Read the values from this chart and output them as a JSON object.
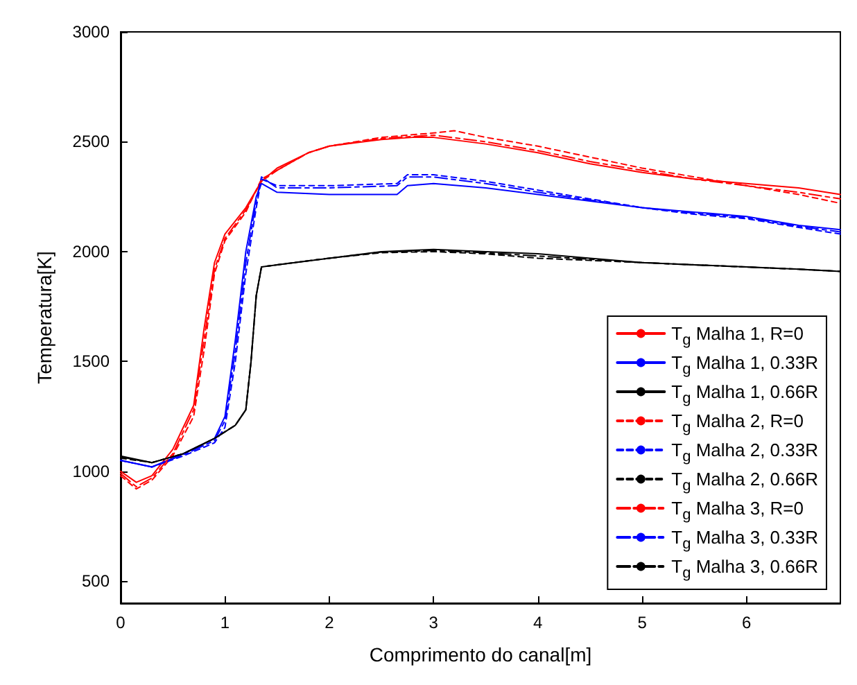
{
  "chart_data": {
    "type": "line",
    "xlabel": "Comprimento do canal[m]",
    "ylabel": "Temperatura[K]",
    "xlim": [
      0,
      6.9
    ],
    "xticks": [
      0,
      1,
      2,
      3,
      4,
      5,
      6
    ],
    "ylim": [
      400,
      3000
    ],
    "yticks": [
      500,
      1000,
      1500,
      2000,
      2500,
      3000
    ],
    "grid": false,
    "legend": "right",
    "marker": "none",
    "series": [
      {
        "name": "T$_{g}$ Malha 1, R=0",
        "color": "#ff0000",
        "line_style": "solid",
        "x": [
          0,
          0.15,
          0.3,
          0.5,
          0.7,
          0.8,
          0.9,
          1.0,
          1.2,
          1.35,
          1.5,
          1.8,
          2.0,
          2.5,
          2.8,
          3.0,
          3.5,
          4.0,
          4.5,
          5.0,
          5.5,
          6.0,
          6.5,
          6.9
        ],
        "values": [
          1000,
          950,
          980,
          1100,
          1300,
          1650,
          1950,
          2080,
          2200,
          2320,
          2380,
          2450,
          2480,
          2510,
          2520,
          2520,
          2490,
          2450,
          2400,
          2360,
          2330,
          2310,
          2290,
          2260
        ]
      },
      {
        "name": "T$_{g}$ Malha 1, 0.33R",
        "color": "#0000ff",
        "line_style": "solid",
        "x": [
          0,
          0.3,
          0.6,
          0.9,
          1.0,
          1.1,
          1.2,
          1.3,
          1.35,
          1.5,
          2.0,
          2.65,
          2.75,
          3.0,
          3.5,
          4.0,
          4.5,
          5.0,
          5.5,
          6.0,
          6.5,
          6.9
        ],
        "values": [
          1050,
          1020,
          1080,
          1150,
          1250,
          1600,
          2000,
          2250,
          2310,
          2270,
          2260,
          2260,
          2300,
          2310,
          2290,
          2260,
          2230,
          2200,
          2180,
          2160,
          2120,
          2100
        ]
      },
      {
        "name": "T$_{g}$ Malha 1, 0.66R",
        "color": "#000000",
        "line_style": "solid",
        "x": [
          0,
          0.3,
          0.6,
          0.9,
          1.1,
          1.2,
          1.25,
          1.3,
          1.35,
          1.5,
          2.0,
          2.5,
          3.0,
          3.5,
          4.0,
          4.5,
          5.0,
          5.5,
          6.0,
          6.5,
          6.9
        ],
        "values": [
          1070,
          1040,
          1080,
          1150,
          1210,
          1280,
          1500,
          1800,
          1930,
          1940,
          1970,
          2000,
          2010,
          2000,
          1990,
          1970,
          1950,
          1940,
          1930,
          1920,
          1910
        ]
      },
      {
        "name": "T$_{g}$ Malha 2, R=0",
        "color": "#ff0000",
        "line_style": "dashed",
        "x": [
          0,
          0.15,
          0.3,
          0.5,
          0.7,
          0.8,
          0.9,
          1.0,
          1.2,
          1.35,
          1.5,
          1.8,
          2.0,
          2.5,
          3.0,
          3.2,
          3.5,
          4.0,
          4.5,
          5.0,
          5.5,
          6.0,
          6.5,
          6.9
        ],
        "values": [
          980,
          920,
          960,
          1070,
          1250,
          1550,
          1900,
          2050,
          2180,
          2330,
          2370,
          2450,
          2480,
          2520,
          2540,
          2550,
          2520,
          2480,
          2430,
          2380,
          2340,
          2300,
          2260,
          2220
        ]
      },
      {
        "name": "T$_{g}$ Malha 2, 0.33R",
        "color": "#0000ff",
        "line_style": "dashed",
        "x": [
          0,
          0.3,
          0.6,
          0.9,
          1.0,
          1.1,
          1.2,
          1.3,
          1.35,
          1.5,
          2.0,
          2.65,
          2.75,
          3.0,
          3.5,
          4.0,
          4.5,
          5.0,
          5.5,
          6.0,
          6.5,
          6.9
        ],
        "values": [
          1050,
          1020,
          1070,
          1130,
          1200,
          1500,
          1900,
          2200,
          2330,
          2300,
          2300,
          2310,
          2350,
          2350,
          2320,
          2280,
          2240,
          2200,
          2170,
          2150,
          2110,
          2080
        ]
      },
      {
        "name": "T$_{g}$ Malha 2, 0.66R",
        "color": "#000000",
        "line_style": "dashed",
        "x": [
          0,
          0.3,
          0.6,
          0.9,
          1.1,
          1.2,
          1.25,
          1.3,
          1.35,
          1.5,
          2.0,
          2.5,
          3.0,
          3.5,
          4.0,
          4.5,
          5.0,
          5.5,
          6.0,
          6.5,
          6.9
        ],
        "values": [
          1060,
          1040,
          1080,
          1150,
          1210,
          1280,
          1500,
          1800,
          1930,
          1940,
          1970,
          1995,
          2000,
          1990,
          1970,
          1960,
          1950,
          1940,
          1930,
          1920,
          1910
        ]
      },
      {
        "name": "T$_{g}$ Malha 3, R=0",
        "color": "#ff0000",
        "line_style": "dashdot",
        "x": [
          0,
          0.15,
          0.3,
          0.5,
          0.7,
          0.8,
          0.9,
          1.0,
          1.2,
          1.35,
          1.5,
          1.8,
          2.0,
          2.5,
          3.0,
          3.5,
          4.0,
          4.5,
          5.0,
          5.5,
          6.0,
          6.5,
          6.9
        ],
        "values": [
          990,
          930,
          970,
          1080,
          1280,
          1600,
          1920,
          2060,
          2190,
          2320,
          2370,
          2450,
          2480,
          2515,
          2530,
          2500,
          2460,
          2410,
          2370,
          2330,
          2300,
          2270,
          2240
        ]
      },
      {
        "name": "T$_{g}$ Malha 3, 0.33R",
        "color": "#0000ff",
        "line_style": "dashdot",
        "x": [
          0,
          0.3,
          0.6,
          0.9,
          1.0,
          1.1,
          1.2,
          1.3,
          1.35,
          1.5,
          2.0,
          2.65,
          2.75,
          3.0,
          3.5,
          4.0,
          4.5,
          5.0,
          5.5,
          6.0,
          6.5,
          6.9
        ],
        "values": [
          1050,
          1020,
          1075,
          1140,
          1230,
          1550,
          1950,
          2230,
          2340,
          2290,
          2290,
          2300,
          2340,
          2340,
          2310,
          2270,
          2235,
          2200,
          2175,
          2155,
          2115,
          2090
        ]
      },
      {
        "name": "T$_{g}$ Malha 3, 0.66R",
        "color": "#000000",
        "line_style": "dashdot",
        "x": [
          0,
          0.3,
          0.6,
          0.9,
          1.1,
          1.2,
          1.25,
          1.3,
          1.35,
          1.5,
          2.0,
          2.5,
          3.0,
          3.5,
          4.0,
          4.5,
          5.0,
          5.5,
          6.0,
          6.5,
          6.9
        ],
        "values": [
          1065,
          1040,
          1080,
          1150,
          1210,
          1280,
          1500,
          1800,
          1930,
          1940,
          1970,
          1998,
          2005,
          1995,
          1980,
          1965,
          1950,
          1940,
          1930,
          1920,
          1910
        ]
      }
    ]
  }
}
